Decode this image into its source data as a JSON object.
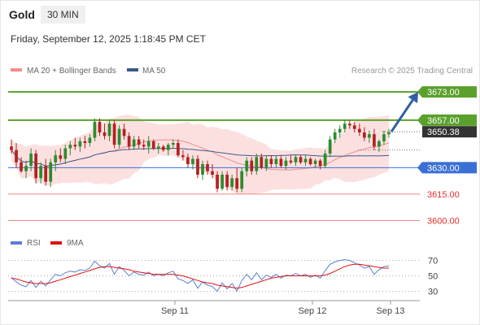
{
  "header": {
    "instrument": "Gold",
    "timeframe": "30 MIN",
    "datetime": "Friday, September 12, 2025 1:18:45 PM CET"
  },
  "legend": {
    "bollinger": "MA 20 + Bollinger Bands",
    "ma50": "MA 50",
    "credit": "Research © 2025 Trading Central"
  },
  "oscillator_legend": {
    "rsi": "RSI",
    "ma9": "9MA"
  },
  "colors": {
    "candle_up": "#2e8b2e",
    "candle_down": "#b22222",
    "ma20_band": "#f48c8c",
    "ma50": "#3b5a8a",
    "level_green": "#5aa02c",
    "level_blue": "#3b6fd6",
    "level_red": "#f08080",
    "rsi": "#5b7fd6",
    "rsi_ma": "#e01010",
    "arrow": "#2f5fa6"
  },
  "chart_data": [
    {
      "type": "candlestick",
      "title": "Gold",
      "ylim": [
        3596,
        3680
      ],
      "x_ticks": [
        "Sep 11",
        "Sep 12",
        "Sep 13"
      ],
      "current_price": 3650.38,
      "projection": {
        "from": 3650.38,
        "to": 3673.0
      },
      "levels": [
        {
          "label": "3673.00",
          "value": 3673.0,
          "kind": "green"
        },
        {
          "label": "3657.00",
          "value": 3657.0,
          "kind": "green"
        },
        {
          "label": "3650.38",
          "value": 3650.38,
          "kind": "current"
        },
        {
          "label": "3630.00",
          "value": 3630.0,
          "kind": "blue"
        },
        {
          "label": "3615.00",
          "value": 3615.0,
          "kind": "red"
        },
        {
          "label": "3600.00",
          "value": 3600.0,
          "kind": "red"
        }
      ],
      "series": [
        {
          "name": "MA 20 + Bollinger Bands",
          "kind": "ma20_bands"
        },
        {
          "name": "MA 50",
          "kind": "ma50"
        }
      ],
      "candles": [
        {
          "o": 3642,
          "h": 3646,
          "l": 3638,
          "c": 3640
        },
        {
          "o": 3640,
          "h": 3644,
          "l": 3630,
          "c": 3633
        },
        {
          "o": 3633,
          "h": 3636,
          "l": 3627,
          "c": 3628
        },
        {
          "o": 3628,
          "h": 3634,
          "l": 3624,
          "c": 3631
        },
        {
          "o": 3631,
          "h": 3641,
          "l": 3628,
          "c": 3638
        },
        {
          "o": 3638,
          "h": 3640,
          "l": 3621,
          "c": 3624
        },
        {
          "o": 3624,
          "h": 3633,
          "l": 3621,
          "c": 3631
        },
        {
          "o": 3631,
          "h": 3635,
          "l": 3620,
          "c": 3622
        },
        {
          "o": 3622,
          "h": 3635,
          "l": 3619,
          "c": 3633
        },
        {
          "o": 3633,
          "h": 3640,
          "l": 3628,
          "c": 3637
        },
        {
          "o": 3637,
          "h": 3641,
          "l": 3633,
          "c": 3635
        },
        {
          "o": 3635,
          "h": 3643,
          "l": 3632,
          "c": 3641
        },
        {
          "o": 3641,
          "h": 3645,
          "l": 3637,
          "c": 3643
        },
        {
          "o": 3643,
          "h": 3647,
          "l": 3640,
          "c": 3642
        },
        {
          "o": 3642,
          "h": 3647,
          "l": 3639,
          "c": 3645
        },
        {
          "o": 3645,
          "h": 3648,
          "l": 3641,
          "c": 3644
        },
        {
          "o": 3644,
          "h": 3649,
          "l": 3642,
          "c": 3647
        },
        {
          "o": 3647,
          "h": 3658,
          "l": 3645,
          "c": 3656
        },
        {
          "o": 3656,
          "h": 3658,
          "l": 3648,
          "c": 3650
        },
        {
          "o": 3650,
          "h": 3655,
          "l": 3646,
          "c": 3648
        },
        {
          "o": 3648,
          "h": 3657,
          "l": 3645,
          "c": 3655
        },
        {
          "o": 3655,
          "h": 3657,
          "l": 3641,
          "c": 3643
        },
        {
          "o": 3643,
          "h": 3654,
          "l": 3641,
          "c": 3652
        },
        {
          "o": 3652,
          "h": 3655,
          "l": 3646,
          "c": 3648
        },
        {
          "o": 3648,
          "h": 3650,
          "l": 3640,
          "c": 3642
        },
        {
          "o": 3642,
          "h": 3648,
          "l": 3640,
          "c": 3646
        },
        {
          "o": 3646,
          "h": 3648,
          "l": 3641,
          "c": 3643
        },
        {
          "o": 3643,
          "h": 3646,
          "l": 3640,
          "c": 3642
        },
        {
          "o": 3642,
          "h": 3648,
          "l": 3638,
          "c": 3645
        },
        {
          "o": 3645,
          "h": 3646,
          "l": 3640,
          "c": 3641
        },
        {
          "o": 3641,
          "h": 3644,
          "l": 3638,
          "c": 3642
        },
        {
          "o": 3642,
          "h": 3643,
          "l": 3639,
          "c": 3640
        },
        {
          "o": 3640,
          "h": 3644,
          "l": 3637,
          "c": 3643
        },
        {
          "o": 3643,
          "h": 3646,
          "l": 3641,
          "c": 3644
        },
        {
          "o": 3644,
          "h": 3646,
          "l": 3636,
          "c": 3637
        },
        {
          "o": 3637,
          "h": 3640,
          "l": 3634,
          "c": 3636
        },
        {
          "o": 3636,
          "h": 3638,
          "l": 3630,
          "c": 3632
        },
        {
          "o": 3632,
          "h": 3637,
          "l": 3629,
          "c": 3635
        },
        {
          "o": 3635,
          "h": 3637,
          "l": 3624,
          "c": 3626
        },
        {
          "o": 3626,
          "h": 3634,
          "l": 3623,
          "c": 3632
        },
        {
          "o": 3632,
          "h": 3634,
          "l": 3626,
          "c": 3628
        },
        {
          "o": 3628,
          "h": 3632,
          "l": 3624,
          "c": 3626
        },
        {
          "o": 3626,
          "h": 3628,
          "l": 3616,
          "c": 3618
        },
        {
          "o": 3618,
          "h": 3628,
          "l": 3617,
          "c": 3626
        },
        {
          "o": 3626,
          "h": 3628,
          "l": 3617,
          "c": 3619
        },
        {
          "o": 3619,
          "h": 3626,
          "l": 3617,
          "c": 3624
        },
        {
          "o": 3624,
          "h": 3630,
          "l": 3616,
          "c": 3618
        },
        {
          "o": 3618,
          "h": 3630,
          "l": 3616,
          "c": 3628
        },
        {
          "o": 3628,
          "h": 3636,
          "l": 3625,
          "c": 3634
        },
        {
          "o": 3634,
          "h": 3636,
          "l": 3626,
          "c": 3628
        },
        {
          "o": 3628,
          "h": 3638,
          "l": 3626,
          "c": 3636
        },
        {
          "o": 3636,
          "h": 3638,
          "l": 3629,
          "c": 3630
        },
        {
          "o": 3630,
          "h": 3637,
          "l": 3628,
          "c": 3635
        },
        {
          "o": 3635,
          "h": 3637,
          "l": 3630,
          "c": 3632
        },
        {
          "o": 3632,
          "h": 3637,
          "l": 3630,
          "c": 3635
        },
        {
          "o": 3635,
          "h": 3637,
          "l": 3630,
          "c": 3631
        },
        {
          "o": 3631,
          "h": 3636,
          "l": 3629,
          "c": 3634
        },
        {
          "o": 3634,
          "h": 3637,
          "l": 3632,
          "c": 3633
        },
        {
          "o": 3633,
          "h": 3637,
          "l": 3631,
          "c": 3636
        },
        {
          "o": 3636,
          "h": 3637,
          "l": 3632,
          "c": 3633
        },
        {
          "o": 3633,
          "h": 3637,
          "l": 3631,
          "c": 3635
        },
        {
          "o": 3635,
          "h": 3636,
          "l": 3631,
          "c": 3632
        },
        {
          "o": 3632,
          "h": 3635,
          "l": 3630,
          "c": 3634
        },
        {
          "o": 3634,
          "h": 3635,
          "l": 3629,
          "c": 3631
        },
        {
          "o": 3631,
          "h": 3640,
          "l": 3630,
          "c": 3638
        },
        {
          "o": 3638,
          "h": 3648,
          "l": 3636,
          "c": 3646
        },
        {
          "o": 3646,
          "h": 3652,
          "l": 3644,
          "c": 3650
        },
        {
          "o": 3650,
          "h": 3654,
          "l": 3647,
          "c": 3652
        },
        {
          "o": 3652,
          "h": 3657,
          "l": 3650,
          "c": 3655
        },
        {
          "o": 3655,
          "h": 3657,
          "l": 3652,
          "c": 3654
        },
        {
          "o": 3654,
          "h": 3656,
          "l": 3650,
          "c": 3652
        },
        {
          "o": 3652,
          "h": 3655,
          "l": 3648,
          "c": 3650
        },
        {
          "o": 3650,
          "h": 3653,
          "l": 3645,
          "c": 3647
        },
        {
          "o": 3647,
          "h": 3651,
          "l": 3644,
          "c": 3649
        },
        {
          "o": 3649,
          "h": 3652,
          "l": 3640,
          "c": 3642
        },
        {
          "o": 3642,
          "h": 3646,
          "l": 3639,
          "c": 3645
        },
        {
          "o": 3645,
          "h": 3651,
          "l": 3643,
          "c": 3649
        },
        {
          "o": 3649,
          "h": 3652,
          "l": 3647,
          "c": 3650
        }
      ]
    },
    {
      "type": "line",
      "title": "RSI",
      "ylim": [
        20,
        80
      ],
      "y_ticks": [
        70,
        50,
        30
      ],
      "series": [
        {
          "name": "RSI",
          "values": [
            48,
            42,
            38,
            36,
            44,
            35,
            43,
            37,
            45,
            52,
            50,
            54,
            56,
            55,
            58,
            57,
            60,
            69,
            63,
            60,
            66,
            52,
            62,
            57,
            50,
            55,
            52,
            51,
            55,
            50,
            52,
            50,
            54,
            56,
            46,
            44,
            40,
            45,
            34,
            42,
            38,
            36,
            30,
            41,
            33,
            40,
            30,
            44,
            52,
            45,
            54,
            45,
            51,
            48,
            52,
            47,
            51,
            50,
            53,
            50,
            52,
            48,
            51,
            47,
            57,
            65,
            68,
            70,
            71,
            70,
            67,
            64,
            60,
            62,
            52,
            58,
            62,
            63
          ]
        },
        {
          "name": "9MA",
          "values": [
            47,
            46,
            44,
            42,
            41,
            40,
            40,
            40,
            41,
            43,
            45,
            47,
            49,
            51,
            53,
            55,
            57,
            59,
            61,
            62,
            62,
            61,
            60,
            59,
            58,
            56,
            55,
            54,
            53,
            52,
            52,
            52,
            52,
            52,
            51,
            50,
            48,
            46,
            44,
            42,
            41,
            40,
            38,
            37,
            36,
            35,
            34,
            35,
            37,
            39,
            41,
            43,
            45,
            47,
            48,
            49,
            50,
            50,
            50,
            50,
            50,
            50,
            50,
            50,
            51,
            53,
            56,
            59,
            62,
            64,
            65,
            65,
            64,
            63,
            62,
            61,
            60,
            60
          ]
        }
      ]
    }
  ]
}
